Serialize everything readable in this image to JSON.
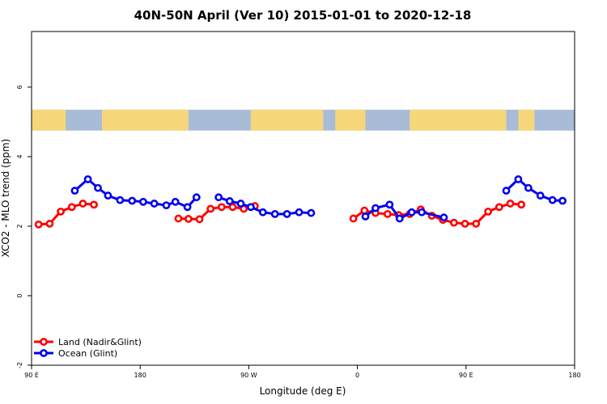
{
  "chart_data": {
    "type": "line",
    "title": "40N-50N April (Ver 10)   2015-01-01 to 2020-12-18",
    "xlabel": "Longitude (deg E)",
    "ylabel": "XCO2 - MLO trend (ppm)",
    "xlim": [
      -90,
      180
    ],
    "ylim": [
      -2,
      7.6
    ],
    "xticks": [
      {
        "value": -90,
        "label": "90 E"
      },
      {
        "value": -36,
        "label": "180"
      },
      {
        "value": 18,
        "label": "90 W"
      },
      {
        "value": 72,
        "label": "0"
      },
      {
        "value": 126,
        "label": "90 E"
      },
      {
        "value": 180,
        "label": "180"
      }
    ],
    "yticks": [
      {
        "value": -2,
        "label": "-2"
      },
      {
        "value": 0,
        "label": "0"
      },
      {
        "value": 2,
        "label": "2"
      },
      {
        "value": 4,
        "label": "4"
      },
      {
        "value": 6,
        "label": "6"
      }
    ],
    "map_band": {
      "ymin": 4.75,
      "ymax": 5.35,
      "land_color": "#f5d77a",
      "ocean_color": "#a8bcd8"
    },
    "legend": {
      "position": "bottom-left"
    },
    "series": [
      {
        "name": "Land (Nadir&Glint)",
        "color": "#ff0000",
        "segments": [
          [
            [
              -86.5,
              2.05
            ],
            [
              -81,
              2.07
            ],
            [
              -75.5,
              2.42
            ],
            [
              -70,
              2.55
            ],
            [
              -64.5,
              2.65
            ],
            [
              -59,
              2.62
            ]
          ],
          [
            [
              -17,
              2.22
            ],
            [
              -12,
              2.21
            ],
            [
              -6.5,
              2.2
            ],
            [
              -1,
              2.5
            ],
            [
              4.5,
              2.55
            ],
            [
              10,
              2.55
            ],
            [
              15.5,
              2.5
            ],
            [
              21,
              2.58
            ]
          ],
          [
            [
              70,
              2.22
            ],
            [
              75.5,
              2.45
            ],
            [
              81,
              2.38
            ],
            [
              87,
              2.35
            ],
            [
              92.5,
              2.32
            ],
            [
              98,
              2.35
            ],
            [
              103.5,
              2.48
            ],
            [
              109,
              2.3
            ],
            [
              114.5,
              2.18
            ],
            [
              120,
              2.1
            ],
            [
              125.5,
              2.07
            ],
            [
              131,
              2.07
            ],
            [
              137,
              2.42
            ],
            [
              142.5,
              2.55
            ],
            [
              148,
              2.65
            ],
            [
              153.5,
              2.62
            ]
          ]
        ]
      },
      {
        "name": "Ocean (Glint)",
        "color": "#0000ee",
        "segments": [
          [
            [
              -68.5,
              3.02
            ],
            [
              -62,
              3.35
            ],
            [
              -57,
              3.1
            ],
            [
              -52,
              2.88
            ],
            [
              -46,
              2.75
            ],
            [
              -40,
              2.73
            ],
            [
              -34.5,
              2.7
            ],
            [
              -29,
              2.65
            ],
            [
              -23,
              2.6
            ],
            [
              -18.5,
              2.7
            ],
            [
              -12.5,
              2.55
            ],
            [
              -8,
              2.83
            ]
          ],
          [
            [
              3,
              2.83
            ],
            [
              8.5,
              2.72
            ],
            [
              14,
              2.65
            ],
            [
              19,
              2.55
            ],
            [
              25,
              2.4
            ],
            [
              31,
              2.35
            ],
            [
              37,
              2.35
            ],
            [
              43,
              2.4
            ],
            [
              49,
              2.38
            ]
          ],
          [
            [
              76,
              2.28
            ],
            [
              81,
              2.52
            ],
            [
              88,
              2.62
            ],
            [
              93,
              2.22
            ],
            [
              99,
              2.4
            ],
            [
              104,
              2.4
            ],
            [
              115,
              2.25
            ]
          ],
          [
            [
              146,
              3.02
            ],
            [
              152,
              3.35
            ],
            [
              157,
              3.1
            ],
            [
              163,
              2.88
            ],
            [
              169,
              2.75
            ],
            [
              174,
              2.73
            ]
          ]
        ]
      }
    ]
  }
}
